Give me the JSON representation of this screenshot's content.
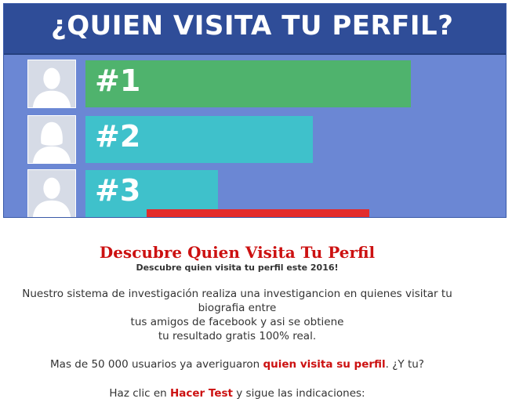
{
  "banner": {
    "title": "¿QUIEN VISITA TU PERFIL?",
    "ranks": [
      {
        "label": "#1",
        "avatar": "male-silhouette-icon",
        "color": "#4fb36d",
        "level": 1.0
      },
      {
        "label": "#2",
        "avatar": "female-silhouette-icon",
        "color": "#3fc1cb",
        "level": 0.7
      },
      {
        "label": "#3",
        "avatar": "male-silhouette-icon",
        "color": "#3fc1cb",
        "level": 0.41
      }
    ],
    "accent_red": "#e32b2b",
    "header_color": "#2f4d98",
    "background_color": "#6b87d4"
  },
  "content": {
    "headline": "Descubre Quien Visita Tu Perfil",
    "subheadline": "Descubre quien visita tu perfil este 2016!",
    "paragraph1_lines": [
      "Nuestro sistema de investigación realiza una investigancion en quienes visitar tu",
      "biografia entre",
      "tus amigos de facebook y asi se obtiene",
      "tu resultado gratis 100% real."
    ],
    "paragraph2": {
      "before": "Mas de 50 000 usuarios ya averiguaron ",
      "link": "quien visita su perfil",
      "after": ". ¿Y tu?"
    },
    "paragraph3": {
      "before": "Haz clic en ",
      "link": "Hacer Test",
      "after": " y sigue las indicaciones:"
    },
    "highlight_color": "#cc1111"
  }
}
